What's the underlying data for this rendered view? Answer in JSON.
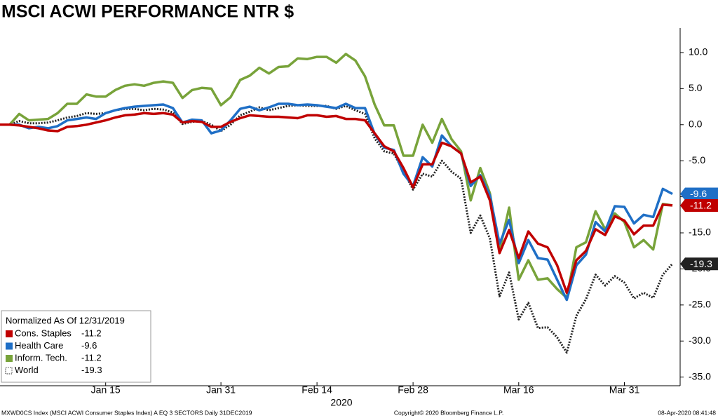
{
  "chart_data": {
    "type": "line",
    "title": "MSCI ACWI PERFORMANCE NTR $",
    "legend_title": "Normalized As Of 12/31/2019",
    "x_label": "2020",
    "x": [
      "2019-12-31",
      "2020-01-01",
      "2020-01-02",
      "2020-01-03",
      "2020-01-06",
      "2020-01-07",
      "2020-01-08",
      "2020-01-09",
      "2020-01-10",
      "2020-01-13",
      "2020-01-14",
      "2020-01-15",
      "2020-01-16",
      "2020-01-17",
      "2020-01-20",
      "2020-01-21",
      "2020-01-22",
      "2020-01-23",
      "2020-01-24",
      "2020-01-27",
      "2020-01-28",
      "2020-01-29",
      "2020-01-30",
      "2020-01-31",
      "2020-02-03",
      "2020-02-04",
      "2020-02-05",
      "2020-02-06",
      "2020-02-07",
      "2020-02-10",
      "2020-02-11",
      "2020-02-12",
      "2020-02-13",
      "2020-02-14",
      "2020-02-17",
      "2020-02-18",
      "2020-02-19",
      "2020-02-20",
      "2020-02-21",
      "2020-02-24",
      "2020-02-25",
      "2020-02-26",
      "2020-02-27",
      "2020-02-28",
      "2020-03-02",
      "2020-03-03",
      "2020-03-04",
      "2020-03-05",
      "2020-03-06",
      "2020-03-09",
      "2020-03-10",
      "2020-03-11",
      "2020-03-12",
      "2020-03-13",
      "2020-03-16",
      "2020-03-17",
      "2020-03-18",
      "2020-03-19",
      "2020-03-20",
      "2020-03-23",
      "2020-03-24",
      "2020-03-25",
      "2020-03-26",
      "2020-03-27",
      "2020-03-30",
      "2020-03-31",
      "2020-04-01",
      "2020-04-02",
      "2020-04-03",
      "2020-04-06",
      "2020-04-07"
    ],
    "xticks": [
      {
        "value": "2020-01-15",
        "label": "Jan 15"
      },
      {
        "value": "2020-01-31",
        "label": "Jan 31"
      },
      {
        "value": "2020-02-14",
        "label": "Feb 14"
      },
      {
        "value": "2020-02-28",
        "label": "Feb 28"
      },
      {
        "value": "2020-03-16",
        "label": "Mar 16"
      },
      {
        "value": "2020-03-31",
        "label": "Mar 31"
      }
    ],
    "ylim": [
      -36.2,
      13.4
    ],
    "yticks": [
      {
        "value": 10,
        "label": "10.0"
      },
      {
        "value": 5,
        "label": "5.0"
      },
      {
        "value": 0,
        "label": "0.0"
      },
      {
        "value": -5,
        "label": "-5.0"
      },
      {
        "value": -10,
        "label": "-10.0"
      },
      {
        "value": -15,
        "label": "-15.0"
      },
      {
        "value": -20,
        "label": "-20.0"
      },
      {
        "value": -25,
        "label": "-25.0"
      },
      {
        "value": -30,
        "label": "-30.0"
      },
      {
        "value": -35,
        "label": "-35.0"
      }
    ],
    "y_axis_side": "right",
    "grid": false,
    "legend_position": "lower left",
    "series": [
      {
        "name": "Cons. Staples",
        "color": "#c00000",
        "style": "solid",
        "values": [
          0,
          0,
          -0.1,
          -0.3,
          -0.5,
          -0.8,
          -0.9,
          -0.3,
          -0.2,
          0.0,
          0.3,
          0.6,
          1.0,
          1.3,
          1.4,
          1.6,
          1.5,
          1.6,
          1.4,
          0.3,
          0.5,
          0.4,
          -0.3,
          -0.3,
          0.4,
          0.9,
          1.3,
          1.2,
          1.1,
          1.1,
          1.0,
          0.9,
          1.3,
          1.3,
          1.1,
          1.2,
          0.8,
          0.8,
          0.6,
          -1.2,
          -3.0,
          -3.7,
          -6.0,
          -8.7,
          -5.5,
          -5.5,
          -2.5,
          -3.0,
          -4.0,
          -8.0,
          -7.2,
          -10.5,
          -17.8,
          -14.6,
          -18.5,
          -14.8,
          -16.5,
          -17.0,
          -19.5,
          -23.3,
          -18.8,
          -17.5,
          -14.5,
          -15.3,
          -12.7,
          -13.3,
          -15.2,
          -14.0,
          -14.0,
          -11.1,
          -11.2
        ]
      },
      {
        "name": "Health Care",
        "color": "#1f6fc6",
        "style": "solid",
        "values": [
          0,
          0,
          0,
          -0.5,
          -0.3,
          -0.5,
          -0.2,
          0.6,
          0.8,
          1.0,
          0.8,
          1.6,
          2.0,
          2.3,
          2.5,
          2.6,
          2.7,
          2.8,
          2.3,
          0.3,
          0.7,
          0.6,
          -1.2,
          -0.8,
          0.6,
          2.2,
          2.5,
          2.0,
          2.4,
          2.9,
          2.9,
          2.7,
          2.8,
          2.7,
          2.5,
          2.3,
          2.9,
          2.3,
          2.3,
          -1.3,
          -3.2,
          -3.5,
          -6.8,
          -8.5,
          -4.5,
          -5.8,
          -1.5,
          -3.0,
          -4.0,
          -8.5,
          -7.0,
          -9.8,
          -16.5,
          -13.2,
          -19.2,
          -16.0,
          -18.5,
          -18.7,
          -21.5,
          -24.3,
          -19.5,
          -18.0,
          -13.5,
          -14.8,
          -11.3,
          -11.4,
          -13.7,
          -12.5,
          -12.8,
          -8.9,
          -9.6
        ]
      },
      {
        "name": "Inform. Tech.",
        "color": "#78a33a",
        "style": "solid",
        "values": [
          0,
          0,
          1.5,
          0.6,
          0.7,
          0.8,
          1.6,
          2.9,
          2.9,
          4.2,
          3.9,
          3.9,
          4.8,
          5.4,
          5.6,
          5.4,
          5.8,
          6.0,
          5.8,
          3.7,
          4.8,
          5.1,
          5.0,
          2.7,
          3.8,
          6.2,
          6.8,
          7.9,
          7.1,
          8.0,
          8.1,
          9.2,
          9.1,
          9.4,
          9.4,
          8.6,
          9.8,
          8.9,
          6.7,
          2.8,
          -0.1,
          -0.1,
          -4.3,
          -4.3,
          0.0,
          -2.5,
          0.8,
          -2.0,
          -3.7,
          -10.5,
          -6.0,
          -9.5,
          -17.5,
          -11.5,
          -21.5,
          -18.8,
          -21.5,
          -21.3,
          -22.8,
          -24.0,
          -17.0,
          -16.3,
          -12.0,
          -14.5,
          -12.3,
          -13.5,
          -17.0,
          -16.0,
          -17.3,
          -11.0,
          -11.2
        ]
      },
      {
        "name": "World",
        "color": "#222222",
        "style": "dotted",
        "values": [
          0,
          0,
          0.5,
          0.2,
          0.2,
          0.3,
          0.6,
          1.0,
          1.2,
          1.6,
          1.5,
          1.6,
          2.0,
          2.2,
          2.2,
          2.0,
          2.2,
          2.1,
          1.7,
          0.1,
          0.4,
          0.5,
          0.0,
          -0.9,
          0.0,
          1.3,
          1.8,
          2.4,
          2.0,
          2.3,
          2.6,
          2.7,
          2.6,
          2.6,
          2.6,
          2.2,
          2.6,
          2.0,
          1.5,
          -1.9,
          -3.7,
          -4.0,
          -6.5,
          -9.0,
          -6.8,
          -7.2,
          -5.0,
          -6.5,
          -7.5,
          -15.0,
          -12.6,
          -15.8,
          -23.8,
          -20.5,
          -27.0,
          -24.7,
          -28.2,
          -28.1,
          -29.5,
          -31.6,
          -26.5,
          -24.2,
          -20.8,
          -22.3,
          -21.0,
          -21.9,
          -24.1,
          -23.3,
          -24.0,
          -20.8,
          -19.3
        ]
      }
    ],
    "footer_left": "MXWD0CS Index (MSCI ACWI Consumer Staples Index) A EQ 3 SECTORS  Daily 31DEC2019",
    "footer_center": "Copyright© 2020 Bloomberg Finance L.P.",
    "footer_right": "08-Apr-2020 08:41:48"
  }
}
